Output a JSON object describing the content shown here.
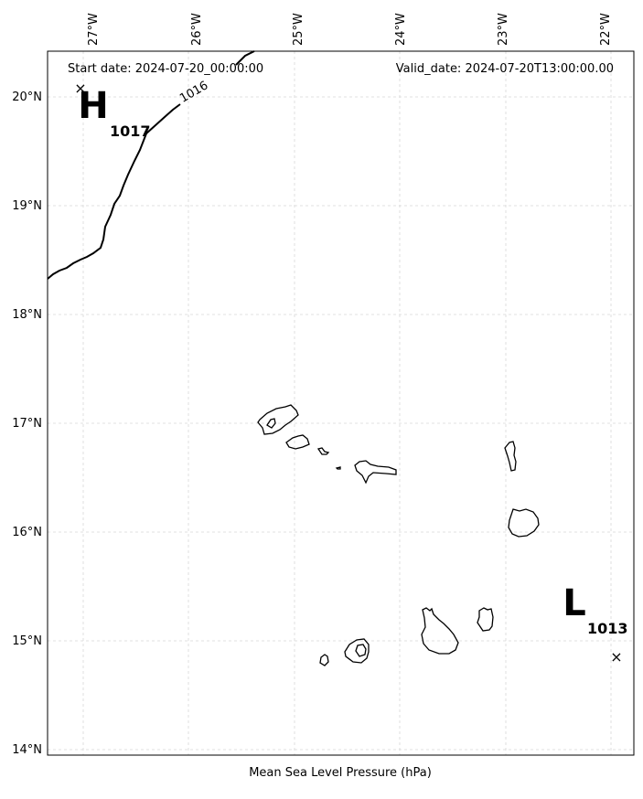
{
  "header": {
    "start_date": "Start date: 2024-07-20_00:00:00",
    "valid_date": "Valid_date: 2024-07-20T13:00:00.00"
  },
  "map": {
    "type": "mean_sea_level_pressure_map",
    "xlabel": "Mean Sea Level Pressure (hPa)",
    "longitude_ticks": [
      "27°W",
      "26°W",
      "25°W",
      "24°W",
      "23°W",
      "22°W"
    ],
    "latitude_ticks": [
      "20°N",
      "19°N",
      "18°N",
      "17°N",
      "16°N",
      "15°N",
      "14°N"
    ],
    "extent": {
      "lon": [
        -27.35,
        -21.8
      ],
      "lat": [
        13.95,
        20.4
      ]
    },
    "grid": true,
    "isobar_labels": [
      "1016"
    ],
    "pressure_centers": [
      {
        "letter": "H",
        "value": "1017",
        "lon": -27.02,
        "lat": 20.06
      },
      {
        "letter": "L",
        "value": "1013",
        "lon": -21.92,
        "lat": 14.84
      }
    ]
  }
}
